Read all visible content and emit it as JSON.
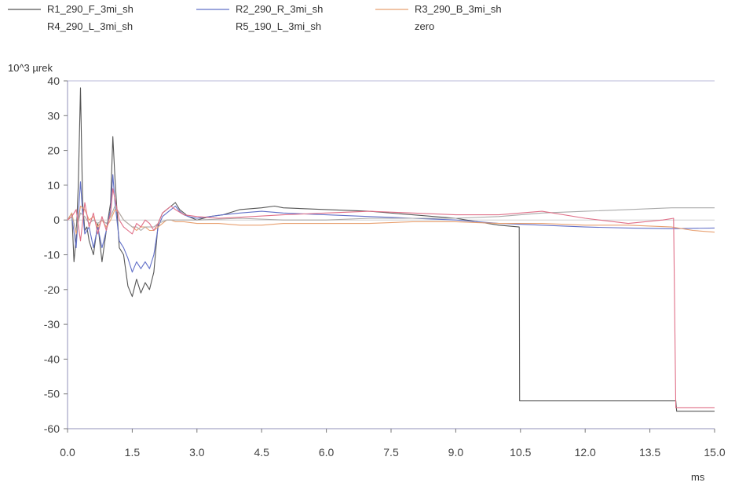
{
  "chart_data": {
    "type": "line",
    "ylabel": "10^3 µrek",
    "xlabel": "ms",
    "xlim": [
      0,
      15
    ],
    "ylim": [
      -60,
      40
    ],
    "xticks": [
      "0.0",
      "1.5",
      "3.0",
      "4.5",
      "6.0",
      "7.5",
      "9.0",
      "10.5",
      "12.0",
      "13.5",
      "15.0"
    ],
    "yticks": [
      "40",
      "30",
      "20",
      "10",
      "0",
      "-10",
      "-20",
      "-30",
      "-40",
      "-50",
      "-60"
    ],
    "legend_position": "top",
    "grid": false,
    "series": [
      {
        "name": "R1_290_F_3mi_sh",
        "color": "#555555",
        "x": [
          0.0,
          0.1,
          0.15,
          0.2,
          0.25,
          0.3,
          0.35,
          0.4,
          0.45,
          0.5,
          0.6,
          0.7,
          0.8,
          0.9,
          1.0,
          1.05,
          1.1,
          1.2,
          1.3,
          1.4,
          1.5,
          1.6,
          1.7,
          1.8,
          1.9,
          2.0,
          2.1,
          2.2,
          2.3,
          2.4,
          2.5,
          2.6,
          2.7,
          2.8,
          3.0,
          3.3,
          3.6,
          4.0,
          4.5,
          4.8,
          5.0,
          6.0,
          7.0,
          8.0,
          9.0,
          10.0,
          10.47,
          10.48,
          11.0,
          12.0,
          13.0,
          14.0,
          14.1,
          14.12,
          15.0
        ],
        "y": [
          0,
          2,
          -12,
          -5,
          10,
          38,
          5,
          -3,
          -2,
          -6,
          -10,
          -1,
          -12,
          -3,
          5,
          24,
          12,
          -8,
          -10,
          -19,
          -22,
          -17,
          -21,
          -18,
          -20,
          -15,
          -1,
          2,
          3,
          4,
          5,
          3,
          2,
          1,
          0,
          1,
          1.5,
          3,
          3.5,
          4,
          3.5,
          3,
          2.5,
          1.5,
          0.5,
          -1.5,
          -2,
          -52,
          -52,
          -52,
          -52,
          -52,
          -52,
          -55,
          -55
        ]
      },
      {
        "name": "R2_290_R_3mi_sh",
        "color": "#6270c8",
        "x": [
          0.0,
          0.1,
          0.2,
          0.3,
          0.35,
          0.4,
          0.5,
          0.6,
          0.7,
          0.8,
          0.9,
          1.0,
          1.05,
          1.1,
          1.2,
          1.3,
          1.4,
          1.5,
          1.6,
          1.7,
          1.8,
          1.9,
          2.0,
          2.1,
          2.2,
          2.3,
          2.4,
          2.5,
          2.6,
          2.7,
          2.8,
          3.0,
          3.3,
          3.6,
          4.0,
          4.5,
          5.0,
          6.0,
          7.0,
          8.0,
          9.0,
          10.0,
          11.0,
          12.0,
          13.0,
          14.0,
          15.0
        ],
        "y": [
          0,
          1,
          -8,
          11,
          2,
          -4,
          -2,
          -8,
          -2,
          -8,
          -3,
          3,
          13,
          5,
          -6,
          -8,
          -11,
          -15,
          -12,
          -14,
          -12,
          -14,
          -10,
          -2,
          1,
          2,
          3,
          4,
          2.5,
          1.5,
          1,
          0.5,
          1,
          1.5,
          2,
          2.5,
          2,
          1.5,
          1,
          0.5,
          0,
          -1,
          -1.5,
          -2,
          -2.3,
          -2.5,
          -2.3
        ]
      },
      {
        "name": "R3_290_B_3mi_sh",
        "color": "#e8a070",
        "x": [
          0.0,
          0.1,
          0.2,
          0.3,
          0.4,
          0.5,
          0.6,
          0.7,
          0.8,
          0.9,
          1.0,
          1.1,
          1.2,
          1.3,
          1.4,
          1.5,
          1.6,
          1.7,
          1.8,
          1.9,
          2.0,
          2.1,
          2.2,
          2.3,
          2.4,
          2.5,
          2.7,
          3.0,
          3.5,
          4.0,
          4.5,
          5.0,
          6.0,
          7.0,
          8.0,
          9.0,
          10.0,
          11.0,
          12.0,
          13.0,
          14.0,
          14.5,
          15.0
        ],
        "y": [
          0,
          2,
          -4,
          4,
          3,
          0,
          1,
          -2,
          0,
          -2,
          0,
          3,
          2,
          0,
          -1,
          -2,
          -3,
          -2,
          -2,
          -3,
          -3,
          -2,
          -1,
          0,
          0,
          -0.5,
          -0.5,
          -1,
          -1,
          -1.5,
          -1.5,
          -1,
          -1,
          -1,
          -0.5,
          -0.5,
          -1,
          -1,
          -1.5,
          -1.5,
          -2,
          -3,
          -3.5
        ]
      },
      {
        "name": "R4_290_L_3mi_sh",
        "color": "#aaaaaa",
        "x": [
          0.0,
          0.1,
          0.2,
          0.3,
          0.4,
          0.5,
          0.6,
          0.7,
          0.8,
          0.9,
          1.0,
          1.1,
          1.2,
          1.3,
          1.4,
          1.5,
          1.6,
          1.7,
          1.8,
          1.9,
          2.0,
          2.1,
          2.2,
          2.3,
          2.5,
          3.0,
          4.0,
          5.0,
          6.0,
          7.0,
          8.0,
          9.0,
          10.0,
          10.5,
          11.0,
          12.0,
          13.0,
          14.0,
          15.0
        ],
        "y": [
          0,
          1,
          -3,
          2,
          1,
          -1,
          0,
          -1,
          0,
          -1,
          1,
          4,
          2,
          0,
          -1,
          -2,
          -2,
          -3,
          -2,
          -2,
          -2,
          -1,
          -0.5,
          0,
          0,
          0,
          0.5,
          0,
          0,
          0.5,
          0.5,
          0.5,
          1,
          1.5,
          2,
          2.5,
          3,
          3.5,
          3.5
        ]
      },
      {
        "name": "R5_190_L_3mi_sh",
        "color": "#e07088",
        "x": [
          0.0,
          0.1,
          0.2,
          0.3,
          0.4,
          0.5,
          0.6,
          0.7,
          0.8,
          0.9,
          1.0,
          1.05,
          1.1,
          1.2,
          1.3,
          1.4,
          1.5,
          1.6,
          1.7,
          1.8,
          1.9,
          2.0,
          2.1,
          2.2,
          2.3,
          2.4,
          2.5,
          2.7,
          3.0,
          3.5,
          4.0,
          5.0,
          6.0,
          7.0,
          8.0,
          9.0,
          10.0,
          10.5,
          11.0,
          12.0,
          13.0,
          13.8,
          14.05,
          14.1,
          15.0
        ],
        "y": [
          0,
          1,
          3,
          -6,
          5,
          -2,
          2,
          -4,
          1,
          -3,
          2,
          9,
          6,
          0,
          -2,
          -3,
          -4,
          -1,
          -2,
          0,
          -1,
          -3,
          -1,
          2,
          3,
          4,
          3,
          1.5,
          1,
          0.5,
          0.8,
          1.5,
          2,
          2.5,
          2,
          1.5,
          1.5,
          2,
          2.5,
          0.5,
          -1,
          0,
          0.5,
          -54,
          -54
        ]
      },
      {
        "name": "zero",
        "color": "#d0d0d0",
        "x": [
          0,
          15
        ],
        "y": [
          0,
          0
        ]
      }
    ]
  }
}
